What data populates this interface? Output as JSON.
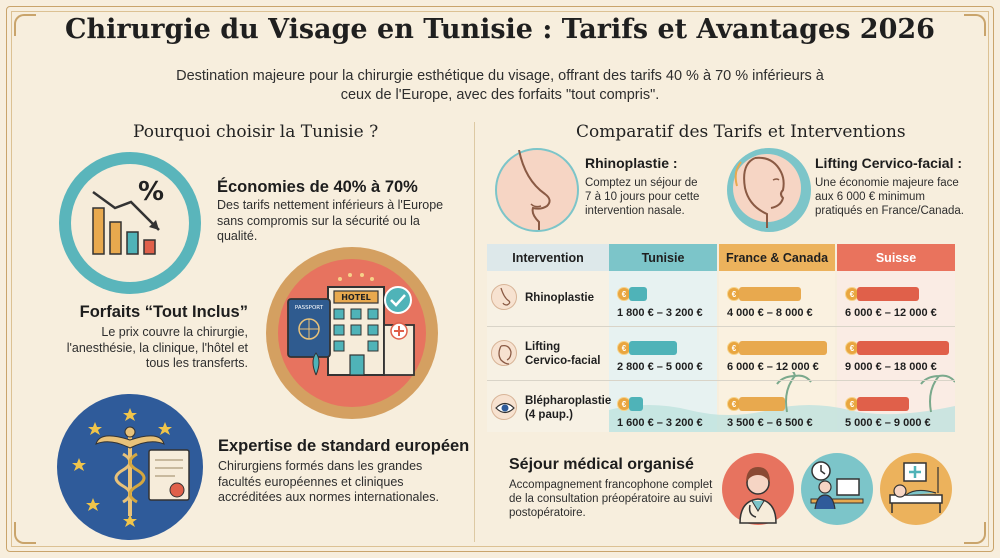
{
  "header": {
    "title": "Chirurgie du Visage en Tunisie : Tarifs et Avantages 2026",
    "subtitle": "Destination majeure pour la chirurgie esthétique du visage, offrant des tarifs 40 % à 70 % inférieurs à ceux de l'Europe, avec des forfaits \"tout compris\"."
  },
  "left": {
    "heading": "Pourquoi choisir la Tunisie ?",
    "features": [
      {
        "title": "Économies de 40% à 70%",
        "text": "Des tarifs nettement inférieurs à l'Europe sans compromis sur la sécurité ou la qualité."
      },
      {
        "title": "Forfaits “Tout Inclus”",
        "text": "Le prix couvre la chirurgie, l'anesthésie, la clinique, l'hôtel et tous les transferts."
      },
      {
        "title": "Expertise de standard européen",
        "text": "Chirurgiens formés dans les grandes facultés européennes et cliniques accréditées aux normes internationales."
      }
    ],
    "icon_labels": {
      "percent": "%",
      "hotel": "HOTEL",
      "passport": "PASSPORT"
    }
  },
  "right": {
    "heading": "Comparatif des Tarifs et Interventions",
    "procedures": [
      {
        "title": "Rhinoplastie :",
        "text": "Comptez un séjour de 7 à 10 jours pour cette intervention nasale."
      },
      {
        "title": "Lifting Cervico-facial :",
        "text": "Une économie majeure face aux 6 000 € minimum pratiqués en France/Canada."
      }
    ],
    "table": {
      "headers": [
        "Intervention",
        "Tunisie",
        "France & Canada",
        "Suisse"
      ],
      "rows": [
        {
          "name": "Rhinoplastie",
          "tunisie": "1 800 € – 3 200 €",
          "france": "4 000 € – 8 000 €",
          "suisse": "6 000 € – 12 000 €"
        },
        {
          "name": "Lifting Cervico-facial",
          "tunisie": "2 800 € – 5 000 €",
          "france": "6 000 € – 12 000 €",
          "suisse": "9 000 € – 18 000 €"
        },
        {
          "name": "Blépharoplastie (4 paup.)",
          "tunisie": "1 600 € – 3 200 €",
          "france": "3 500 € – 6 500 €",
          "suisse": "5 000 € – 9 000 €"
        }
      ],
      "coin_symbol": "€",
      "colors": {
        "tunisie": "#4fb3b8",
        "france": "#e8a94e",
        "suisse": "#e0604a"
      }
    },
    "stay": {
      "title": "Séjour médical organisé",
      "text": "Accompagnement francophone complet de la consultation préopératoire au suivi postopératoire."
    }
  }
}
